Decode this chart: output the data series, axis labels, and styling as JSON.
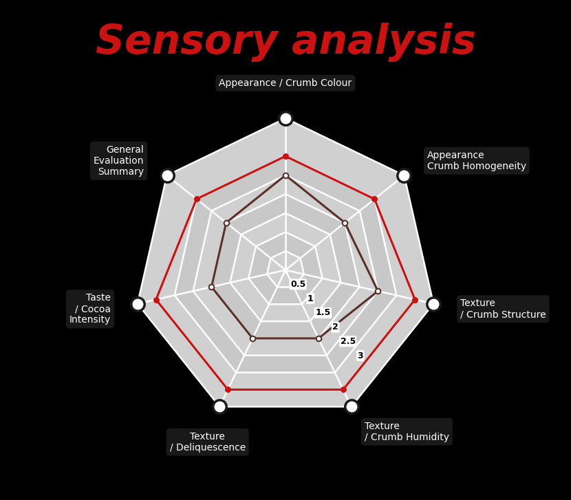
{
  "title": "Sensory analysis",
  "title_color": "#cc1111",
  "title_fontsize": 42,
  "title_fontstyle": "italic",
  "title_fontweight": "bold",
  "categories": [
    "Appearance / Crumb Colour",
    "Appearance\nCrumb Homogeneity",
    "Texture\n/ Crumb Structure",
    "Texture\n/ Crumb Humidity",
    "Texture\n/ Deliquescence",
    "Taste\n/ Cocoa\nIntensity",
    "General\nEvaluation\nSummary"
  ],
  "red_values": [
    3.0,
    3.0,
    3.5,
    3.5,
    3.5,
    3.5,
    3.0
  ],
  "brown_values": [
    2.5,
    2.0,
    2.5,
    2.0,
    2.0,
    2.0,
    2.0
  ],
  "red_color": "#cc1111",
  "brown_color": "#5a3028",
  "radar_max": 4.0,
  "ring_values": [
    0.5,
    1.0,
    1.5,
    2.0,
    2.5,
    3.0,
    4.0
  ],
  "bg_color": "#000000",
  "radar_fill_outer": "#cccccc",
  "radar_fill_inner": "#d8d8d8",
  "grid_color": "#ffffff",
  "outer_dot_white": "#ffffff",
  "outer_dot_dark": "#1a1a1a",
  "label_fontsize": 10,
  "ring_label_fontsize": 9
}
